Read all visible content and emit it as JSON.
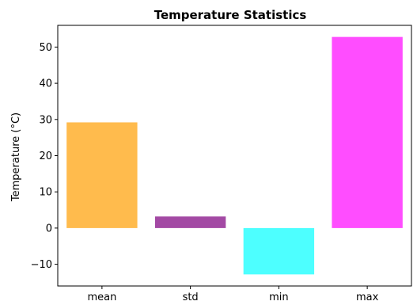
{
  "chart_data": {
    "type": "bar",
    "title": "Temperature Statistics",
    "xlabel": "",
    "ylabel": "Temperature (°C)",
    "categories": [
      "mean",
      "std",
      "min",
      "max"
    ],
    "values": [
      29.2,
      3.2,
      -12.8,
      52.8
    ],
    "colors": [
      "#FFBB4D",
      "#A349A4",
      "#4DFFFF",
      "#FF4DFF"
    ],
    "ylim": [
      -16,
      56
    ],
    "yticks": [
      -10,
      0,
      10,
      20,
      30,
      40,
      50
    ],
    "ytick_labels": [
      "−10",
      "0",
      "10",
      "20",
      "30",
      "40",
      "50"
    ],
    "grid": false,
    "legend": "none"
  }
}
